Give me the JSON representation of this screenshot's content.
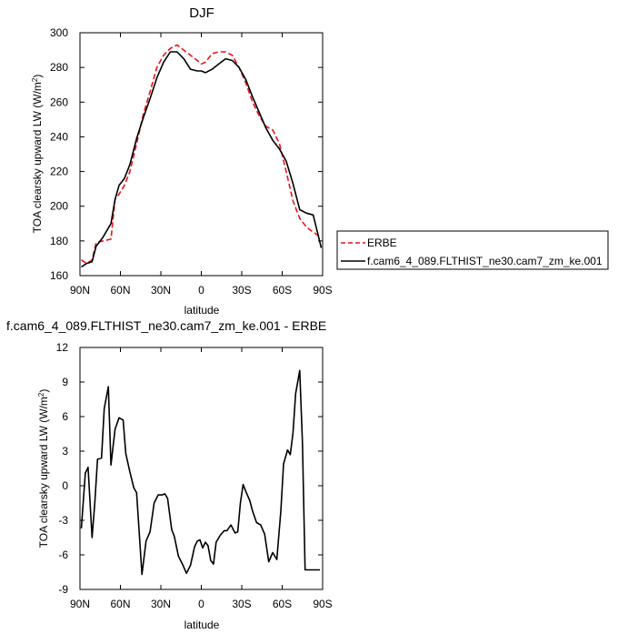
{
  "chart_data": [
    {
      "type": "line",
      "title": "DJF",
      "xlabel": "latitude",
      "ylabel": "TOA clearsky upward LW (W/m²)",
      "ylabel_main": "TOA clearsky upward LW (W/m",
      "ylabel_sup": "2",
      "ylabel_tail": ")",
      "xlim": [
        90,
        -90
      ],
      "ylim": [
        160,
        300
      ],
      "xticks": [
        90,
        60,
        30,
        0,
        -30,
        -60,
        -90
      ],
      "xtick_labels": [
        "90N",
        "60N",
        "30N",
        "0",
        "30S",
        "60S",
        "90S"
      ],
      "yticks": [
        160,
        180,
        200,
        220,
        240,
        260,
        280,
        300
      ],
      "ytick_labels": [
        "160",
        "180",
        "200",
        "220",
        "240",
        "260",
        "280",
        "300"
      ],
      "legend_position": "right",
      "series": [
        {
          "name": "ERBE",
          "color": "#e8141b",
          "dash": "dashed",
          "x": [
            89,
            85,
            81,
            78,
            73,
            67,
            64,
            61,
            57,
            53,
            48,
            43,
            38,
            33,
            28,
            23,
            18,
            13,
            8,
            3,
            0,
            -3,
            -8,
            -13,
            -18,
            -23,
            -28,
            -33,
            -38,
            -43,
            -48,
            -53,
            -58,
            -63,
            -68,
            -73,
            -78,
            -83,
            -89
          ],
          "y": [
            169,
            167,
            169,
            179,
            180,
            181,
            204,
            207,
            212,
            220,
            236,
            253,
            266,
            280,
            287,
            291,
            293,
            290,
            287,
            284,
            282,
            283,
            288,
            289,
            289,
            287,
            280,
            271,
            260,
            252,
            246,
            244,
            236,
            220,
            203,
            193,
            188,
            185,
            182
          ]
        },
        {
          "name": "f.cam6_4_089.FLTHIST_ne30.cam7_zm_ke.001",
          "color": "#000000",
          "dash": "solid",
          "x": [
            89,
            85,
            81,
            78,
            73,
            67,
            64,
            61,
            57,
            53,
            48,
            43,
            38,
            33,
            28,
            23,
            18,
            13,
            8,
            3,
            0,
            -3,
            -8,
            -13,
            -18,
            -23,
            -28,
            -33,
            -38,
            -43,
            -48,
            -53,
            -58,
            -63,
            -68,
            -73,
            -78,
            -83,
            -89
          ],
          "y": [
            165,
            167,
            168,
            177,
            182,
            190,
            204,
            212,
            216,
            224,
            239,
            251,
            262,
            274,
            283,
            289,
            289,
            285,
            279,
            278,
            278,
            277,
            279,
            282,
            285,
            284,
            280,
            273,
            263,
            254,
            245,
            238,
            233,
            226,
            213,
            198,
            196,
            195,
            176
          ]
        }
      ]
    },
    {
      "type": "line",
      "title": "f.cam6_4_089.FLTHIST_ne30.cam7_zm_ke.001 - ERBE",
      "xlabel": "latitude",
      "ylabel": "TOA clearsky upward LW (W/m²)",
      "ylabel_main": "TOA clearsky upward LW (W/m",
      "ylabel_sup": "2",
      "ylabel_tail": ")",
      "xlim": [
        90,
        -90
      ],
      "ylim": [
        -9,
        12
      ],
      "xticks": [
        90,
        60,
        30,
        0,
        -30,
        -60,
        -90
      ],
      "xtick_labels": [
        "90N",
        "60N",
        "30N",
        "0",
        "30S",
        "60S",
        "90S"
      ],
      "yticks": [
        -9,
        -6,
        -3,
        0,
        3,
        6,
        9,
        12
      ],
      "ytick_labels": [
        "-9",
        "-6",
        "-3",
        "0",
        "3",
        "6",
        "9",
        "12"
      ],
      "series": [
        {
          "color": "#000000",
          "dash": "solid",
          "x": [
            89,
            86,
            84,
            81,
            79,
            77,
            74,
            72,
            69,
            67,
            64,
            61,
            58,
            56,
            53,
            50,
            48,
            44,
            41,
            38,
            35,
            32,
            29,
            27,
            25,
            22,
            20,
            17,
            14,
            11,
            8,
            5,
            3,
            1,
            -1,
            -3,
            -5,
            -7,
            -9,
            -11,
            -14,
            -17,
            -19,
            -22,
            -25,
            -27,
            -29,
            -31,
            -33,
            -36,
            -38,
            -41,
            -44,
            -47,
            -50,
            -53,
            -56,
            -59,
            -61,
            -64,
            -66,
            -68,
            -70,
            -73,
            -75,
            -77,
            -80,
            -83,
            -86,
            -88
          ],
          "y": [
            -3.7,
            1.1,
            1.6,
            -4.5,
            -1.5,
            2.3,
            2.4,
            6.7,
            8.6,
            1.8,
            4.9,
            5.9,
            5.7,
            2.8,
            1.2,
            -0.2,
            -0.6,
            -7.7,
            -4.8,
            -4.0,
            -1.5,
            -0.8,
            -0.8,
            -0.7,
            -1.1,
            -3.8,
            -4.4,
            -6.1,
            -6.8,
            -7.6,
            -6.9,
            -5.3,
            -4.8,
            -4.7,
            -5.4,
            -4.9,
            -5.2,
            -6.5,
            -6.8,
            -4.9,
            -4.3,
            -3.9,
            -3.9,
            -3.4,
            -4.1,
            -4.0,
            -1.5,
            0.1,
            -0.5,
            -1.3,
            -2.2,
            -3.2,
            -3.4,
            -4.2,
            -6.6,
            -5.8,
            -6.4,
            -2.2,
            1.9,
            3.1,
            2.7,
            4.6,
            8.0,
            10.0,
            3.7,
            -7.3,
            -7.3,
            -7.3,
            -7.3,
            -7.3
          ]
        }
      ]
    }
  ]
}
